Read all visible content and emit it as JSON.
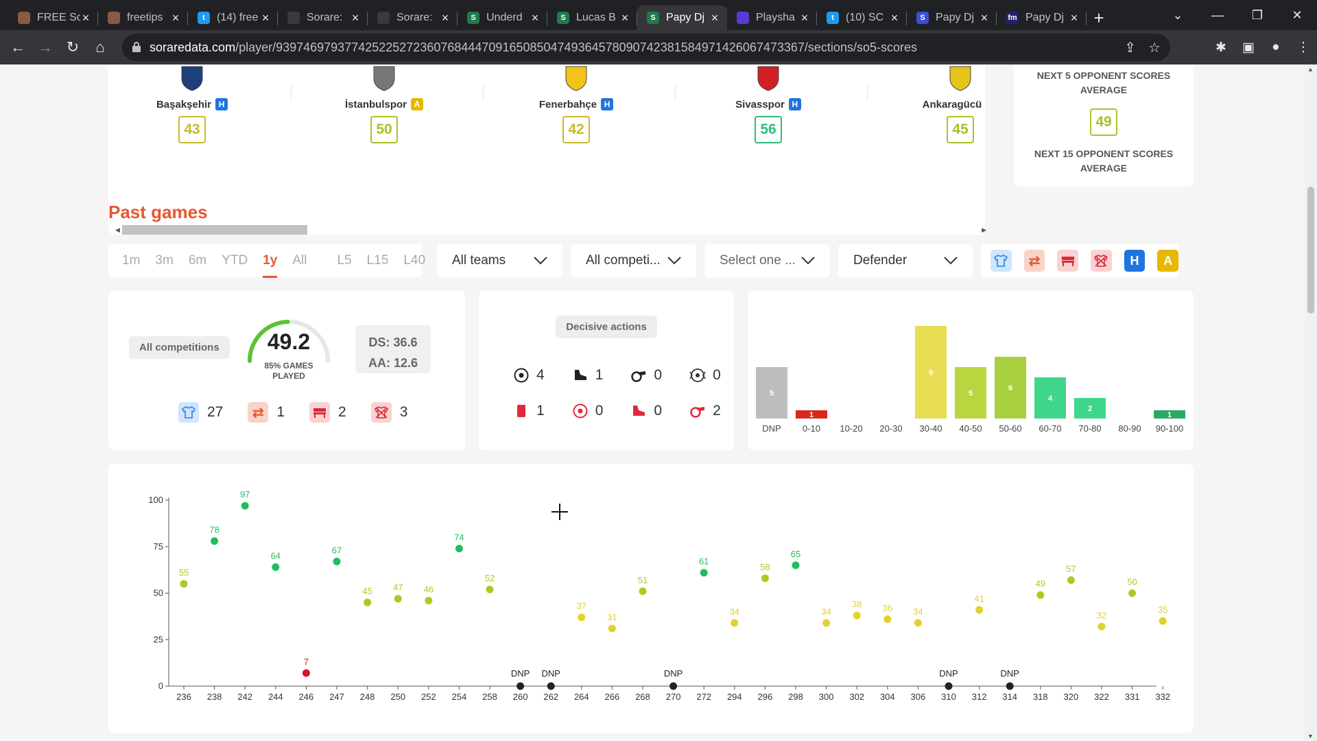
{
  "browser": {
    "tabs": [
      {
        "title": "FREE So",
        "fav_color": "#8a5a44",
        "fav": "",
        "active": false
      },
      {
        "title": "freetips",
        "fav_color": "#8a5a44",
        "fav": "",
        "active": false
      },
      {
        "title": "(14) free",
        "fav_color": "#1d9bf0",
        "fav": "t",
        "active": false
      },
      {
        "title": "Sorare:",
        "fav_color": "#3a3a3a",
        "fav": "",
        "active": false
      },
      {
        "title": "Sorare:",
        "fav_color": "#3a3a3a",
        "fav": "",
        "active": false
      },
      {
        "title": "Underd",
        "fav_color": "#1f7a4c",
        "fav": "S",
        "active": false
      },
      {
        "title": "Lucas B",
        "fav_color": "#1f7a4c",
        "fav": "S",
        "active": false
      },
      {
        "title": "Papy Dj",
        "fav_color": "#1f7a4c",
        "fav": "S",
        "active": true
      },
      {
        "title": "Playsha",
        "fav_color": "#5a3ad6",
        "fav": "",
        "active": false
      },
      {
        "title": "(10) SC",
        "fav_color": "#1d9bf0",
        "fav": "t",
        "active": false
      },
      {
        "title": "Papy Dj",
        "fav_color": "#3a4fd6",
        "fav": "S",
        "active": false
      },
      {
        "title": "Papy Dj",
        "fav_color": "#23236b",
        "fav": "fm",
        "active": false
      }
    ],
    "url_host": "soraredata.com",
    "url_path": "/player/93974697937742522527236076844470916508504749364578090742381584971426067473367/sections/so5-scores"
  },
  "opponents": {
    "items": [
      {
        "name": "Başakşehir",
        "ha": "H",
        "score": "43",
        "color": "#c9b92a",
        "crest": "#1d3f7a"
      },
      {
        "name": "İstanbulspor",
        "ha": "A",
        "score": "50",
        "color": "#a8c225",
        "crest": "#777777"
      },
      {
        "name": "Fenerbahçe",
        "ha": "H",
        "score": "42",
        "color": "#c9b92a",
        "crest": "#f2c318"
      },
      {
        "name": "Sivasspor",
        "ha": "H",
        "score": "56",
        "color": "#2fbd7a",
        "crest": "#d21f26"
      },
      {
        "name": "Ankaragücü",
        "ha": "H",
        "score": "45",
        "color": "#a8c225",
        "crest": "#e6c319"
      }
    ],
    "next5_label": "NEXT 5 OPPONENT SCORES AVERAGE",
    "next15_score": "49",
    "next15_label": "NEXT 15 OPPONENT SCORES AVERAGE"
  },
  "past_games": {
    "title": "Past games",
    "periods": [
      "1m",
      "3m",
      "6m",
      "YTD",
      "1y",
      "All"
    ],
    "selected_period": "1y",
    "limits": [
      "L5",
      "L15",
      "L40"
    ],
    "dropdowns": {
      "teams": "All teams",
      "competitions": "All competi...",
      "select": "Select one ...",
      "position": "Defender"
    },
    "filter_icons": [
      {
        "name": "starter-shirt-icon",
        "color": "#cfe6fb",
        "fg": "#3b8de0",
        "label": ""
      },
      {
        "name": "substitute-icon",
        "color": "#f9d2c8",
        "fg": "#e8572f",
        "label": ""
      },
      {
        "name": "bench-icon",
        "color": "#f9d2d2",
        "fg": "#d9283a",
        "label": ""
      },
      {
        "name": "not-played-icon",
        "color": "#f9d2d2",
        "fg": "#d9283a",
        "label": ""
      },
      {
        "name": "home-icon",
        "color": "#1f74e0",
        "fg": "#ffffff",
        "label": "H"
      },
      {
        "name": "away-icon",
        "color": "#e8b800",
        "fg": "#ffffff",
        "label": "A"
      }
    ]
  },
  "summary": {
    "competitions_label": "All competitions",
    "average": "49.2",
    "average_fraction": 0.492,
    "games_played_label": "85% GAMES PLAYED",
    "ds": "DS: 36.6",
    "aa": "AA: 12.6",
    "starter": "27",
    "sub": "1",
    "bench": "2",
    "dnp": "3"
  },
  "decisive": {
    "label": "Decisive actions",
    "goals": "4",
    "assists": "1",
    "penalty_won": "0",
    "clean_sheet": "0",
    "red_card": "1",
    "own_goal": "0",
    "error_lead_goal": "0",
    "penalty_conceded": "2"
  },
  "distribution": {
    "chart_data": {
      "type": "bar",
      "categories": [
        "DNP",
        "0-10",
        "10-20",
        "20-30",
        "30-40",
        "40-50",
        "50-60",
        "60-70",
        "70-80",
        "80-90",
        "90-100"
      ],
      "values": [
        5,
        1,
        0,
        0,
        9,
        5,
        6,
        4,
        2,
        0,
        1
      ],
      "colors": [
        "#bdbdbd",
        "#d9281e",
        "#d9d9d9",
        "#d9d9d9",
        "#e8dd52",
        "#b8d640",
        "#a8cf3e",
        "#3fd68c",
        "#3fd68c",
        "#2aa866",
        "#2aa866"
      ]
    }
  },
  "scores_chart": {
    "chart_data": {
      "type": "scatter",
      "ylim": [
        0,
        100
      ],
      "yticks": [
        0,
        25,
        50,
        75,
        100
      ],
      "x": [
        "236",
        "238",
        "242",
        "244",
        "246",
        "247",
        "248",
        "250",
        "252",
        "254",
        "258",
        "260",
        "262",
        "264",
        "266",
        "268",
        "270",
        "272",
        "294",
        "296",
        "298",
        "300",
        "302",
        "304",
        "306",
        "310",
        "312",
        "314",
        "318",
        "320",
        "322",
        "331",
        "332"
      ],
      "values": [
        55,
        78,
        97,
        64,
        7,
        67,
        45,
        47,
        46,
        74,
        52,
        null,
        null,
        37,
        31,
        51,
        null,
        61,
        34,
        58,
        65,
        34,
        38,
        36,
        34,
        null,
        41,
        null,
        49,
        57,
        32,
        50,
        35
      ],
      "dnp_label": "DNP"
    }
  }
}
